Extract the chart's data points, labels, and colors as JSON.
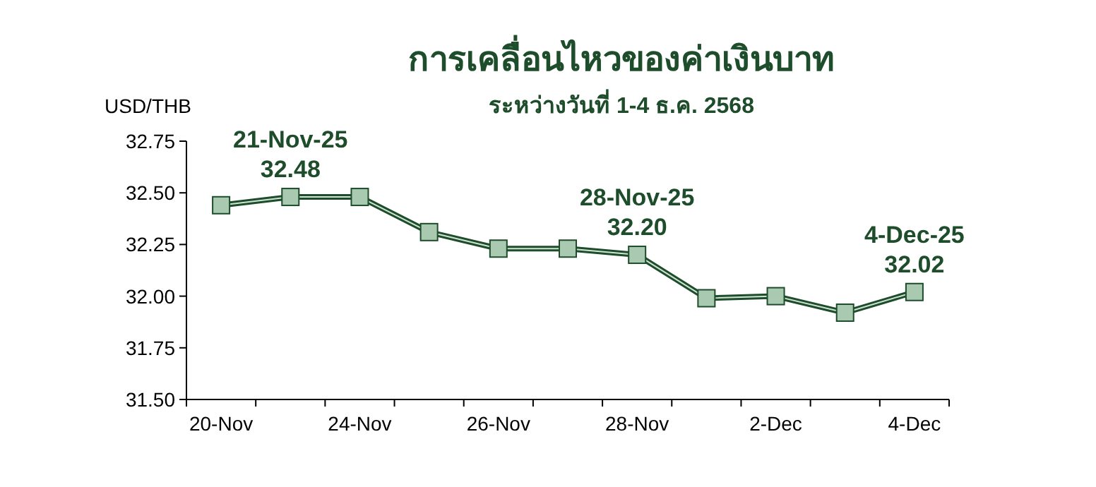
{
  "chart_data": {
    "type": "line",
    "title": "การเคลื่อนไหวของค่าเงินบาท",
    "subtitle": "ระหว่างวันที่ 1-4 ธ.ค. 2568",
    "ylabel": "USD/THB",
    "categories": [
      "20-Nov",
      null,
      "24-Nov",
      null,
      "26-Nov",
      null,
      "28-Nov",
      null,
      "2-Dec",
      null,
      "4-Dec"
    ],
    "series": [
      {
        "color": "#1e4d2b",
        "values": [
          32.44,
          32.48,
          32.48,
          32.31,
          32.23,
          32.23,
          32.2,
          31.99,
          32.0,
          31.92,
          32.02
        ],
        "value_labels": [
          null,
          "21-Nov-25\n32.48",
          null,
          null,
          null,
          null,
          "28-Nov-25\n32.20",
          null,
          null,
          null,
          "4-Dec-25\n32.02"
        ]
      }
    ],
    "ylim": [
      31.5,
      32.75
    ],
    "yticks": [
      {
        "value": 31.5,
        "label": "31.50"
      },
      {
        "value": 31.75,
        "label": "31.75"
      },
      {
        "value": 32.0,
        "label": "32.00"
      },
      {
        "value": 32.25,
        "label": "32.25"
      },
      {
        "value": 32.5,
        "label": "32.50"
      },
      {
        "value": 32.75,
        "label": "32.75"
      }
    ],
    "marker": "square",
    "grid": false
  }
}
